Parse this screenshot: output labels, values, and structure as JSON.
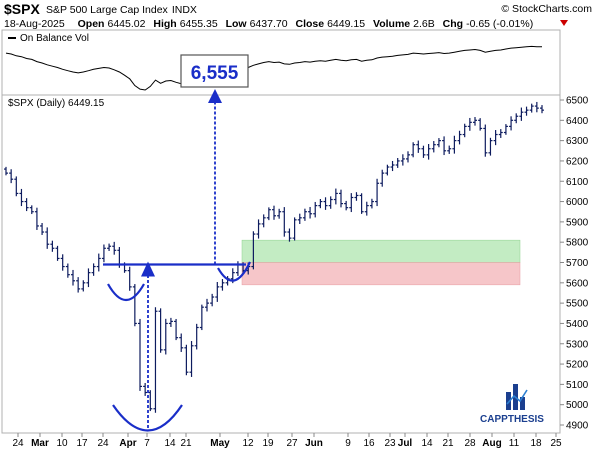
{
  "header": {
    "symbol": "$SPX",
    "name": "S&P 500 Large Cap Index",
    "exchange": "INDX",
    "source": "© StockCharts.com",
    "date": "18-Aug-2025",
    "open_label": "Open",
    "open_value": "6445.02",
    "high_label": "High",
    "high_value": "6455.35",
    "low_label": "Low",
    "low_value": "6437.70",
    "close_label": "Close",
    "close_value": "6449.15",
    "volume_label": "Volume",
    "volume_value": "2.6B",
    "chg_label": "Chg",
    "chg_value": "-0.65 (-0.01%)",
    "down_arrow_color": "#cc0000"
  },
  "obv_panel": {
    "legend": "On Balance Vol"
  },
  "price_panel": {
    "legend": "$SPX (Daily) 6449.15"
  },
  "annotations": {
    "target_label": "6,555",
    "target_value": 6555,
    "breakout_level": 5690,
    "green_zone": [
      5700,
      5810
    ],
    "red_zone": [
      5590,
      5700
    ],
    "colors": {
      "annotation": "#1a2ec8",
      "green_zone": "#c3ecc3",
      "red_zone": "#f6c6c9",
      "bars": "#0d1b5e"
    }
  },
  "branding": {
    "logo_text": "CAPPTHESIS"
  },
  "chart_data": {
    "type": "ohlc",
    "title": "$SPX (Daily) 6449.15",
    "ylim": [
      4800,
      6550
    ],
    "yticks": [
      4900,
      5000,
      5100,
      5200,
      5300,
      5400,
      5500,
      5600,
      5700,
      5800,
      5900,
      6000,
      6100,
      6200,
      6300,
      6400,
      6500
    ],
    "xticks": [
      {
        "label": "24",
        "bold": false
      },
      {
        "label": "Mar",
        "bold": true
      },
      {
        "label": "10",
        "bold": false
      },
      {
        "label": "17",
        "bold": false
      },
      {
        "label": "24",
        "bold": false
      },
      {
        "label": "Apr",
        "bold": true
      },
      {
        "label": "7",
        "bold": false
      },
      {
        "label": "14",
        "bold": false
      },
      {
        "label": "21",
        "bold": false
      },
      {
        "label": "May",
        "bold": true
      },
      {
        "label": "12",
        "bold": false
      },
      {
        "label": "19",
        "bold": false
      },
      {
        "label": "27",
        "bold": false
      },
      {
        "label": "Jun",
        "bold": true
      },
      {
        "label": "9",
        "bold": false
      },
      {
        "label": "16",
        "bold": false
      },
      {
        "label": "23",
        "bold": false
      },
      {
        "label": "Jul",
        "bold": true
      },
      {
        "label": "14",
        "bold": false
      },
      {
        "label": "21",
        "bold": false
      },
      {
        "label": "28",
        "bold": false
      },
      {
        "label": "Aug",
        "bold": true
      },
      {
        "label": "11",
        "bold": false
      },
      {
        "label": "18",
        "bold": false
      },
      {
        "label": "25",
        "bold": false
      }
    ],
    "closes": [
      6140,
      6110,
      6040,
      6000,
      5970,
      5950,
      5880,
      5850,
      5790,
      5770,
      5720,
      5680,
      5640,
      5610,
      5570,
      5600,
      5650,
      5680,
      5720,
      5770,
      5780,
      5760,
      5690,
      5660,
      5580,
      5400,
      5090,
      5060,
      4980,
      5460,
      5270,
      5400,
      5410,
      5330,
      5280,
      5160,
      5290,
      5380,
      5480,
      5500,
      5530,
      5580,
      5600,
      5620,
      5650,
      5690,
      5660,
      5680,
      5840,
      5890,
      5920,
      5960,
      5930,
      5950,
      5850,
      5820,
      5910,
      5920,
      5950,
      5940,
      5980,
      6000,
      5980,
      6010,
      6040,
      5990,
      5970,
      6020,
      6030,
      5950,
      5980,
      6000,
      6090,
      6140,
      6170,
      6180,
      6200,
      6210,
      6230,
      6280,
      6260,
      6230,
      6260,
      6280,
      6300,
      6250,
      6260,
      6300,
      6330,
      6370,
      6390,
      6400,
      6360,
      6240,
      6300,
      6330,
      6340,
      6370,
      6400,
      6420,
      6440,
      6450,
      6470,
      6460,
      6450
    ],
    "obv": [
      0.82,
      0.8,
      0.76,
      0.74,
      0.7,
      0.68,
      0.63,
      0.6,
      0.56,
      0.53,
      0.5,
      0.46,
      0.43,
      0.4,
      0.38,
      0.4,
      0.43,
      0.46,
      0.48,
      0.5,
      0.49,
      0.45,
      0.4,
      0.33,
      0.25,
      0.1,
      0.02,
      0.0,
      0.08,
      0.22,
      0.15,
      0.2,
      0.21,
      0.17,
      0.14,
      0.18,
      0.25,
      0.3,
      0.33,
      0.36,
      0.38,
      0.4,
      0.42,
      0.44,
      0.46,
      0.47,
      0.46,
      0.5,
      0.55,
      0.58,
      0.61,
      0.63,
      0.61,
      0.62,
      0.58,
      0.57,
      0.6,
      0.61,
      0.63,
      0.62,
      0.64,
      0.65,
      0.64,
      0.66,
      0.68,
      0.66,
      0.65,
      0.67,
      0.68,
      0.64,
      0.66,
      0.67,
      0.71,
      0.73,
      0.74,
      0.75,
      0.77,
      0.78,
      0.79,
      0.82,
      0.81,
      0.8,
      0.81,
      0.82,
      0.83,
      0.81,
      0.82,
      0.84,
      0.86,
      0.88,
      0.89,
      0.9,
      0.88,
      0.84,
      0.86,
      0.88,
      0.89,
      0.91,
      0.93,
      0.94,
      0.95,
      0.96,
      0.97,
      0.96,
      0.96
    ]
  }
}
